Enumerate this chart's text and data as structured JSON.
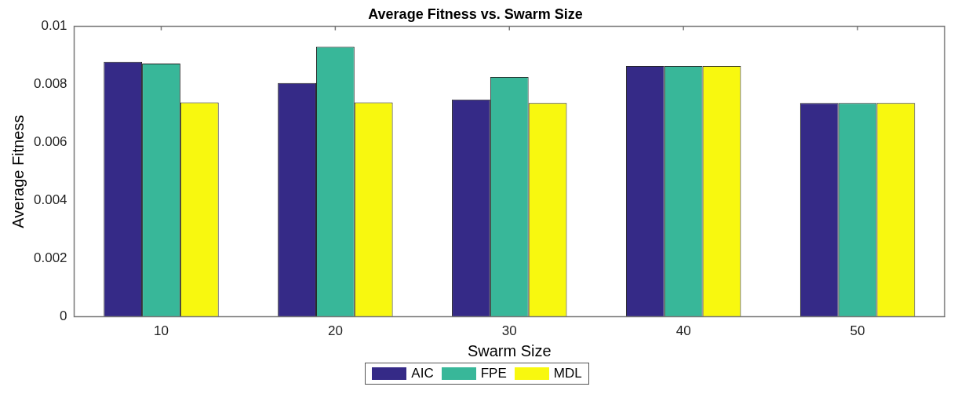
{
  "chart_data": {
    "type": "bar",
    "title": "Average Fitness vs. Swarm Size",
    "xlabel": "Swarm Size",
    "ylabel": "Average Fitness",
    "categories": [
      "10",
      "20",
      "30",
      "40",
      "50"
    ],
    "series": [
      {
        "name": "AIC",
        "color": "#352a87",
        "values": [
          0.00878,
          0.00805,
          0.00748,
          0.00864,
          0.00736
        ]
      },
      {
        "name": "FPE",
        "color": "#38b799",
        "values": [
          0.00872,
          0.0093,
          0.00826,
          0.00864,
          0.00736
        ]
      },
      {
        "name": "MDL",
        "color": "#f8f80f",
        "values": [
          0.00738,
          0.00738,
          0.00736,
          0.00864,
          0.00736
        ]
      }
    ],
    "ylim": [
      0,
      0.01
    ],
    "yticks": [
      0,
      0.002,
      0.004,
      0.006,
      0.008,
      0.01
    ],
    "grid": false,
    "legend": "bottom"
  }
}
